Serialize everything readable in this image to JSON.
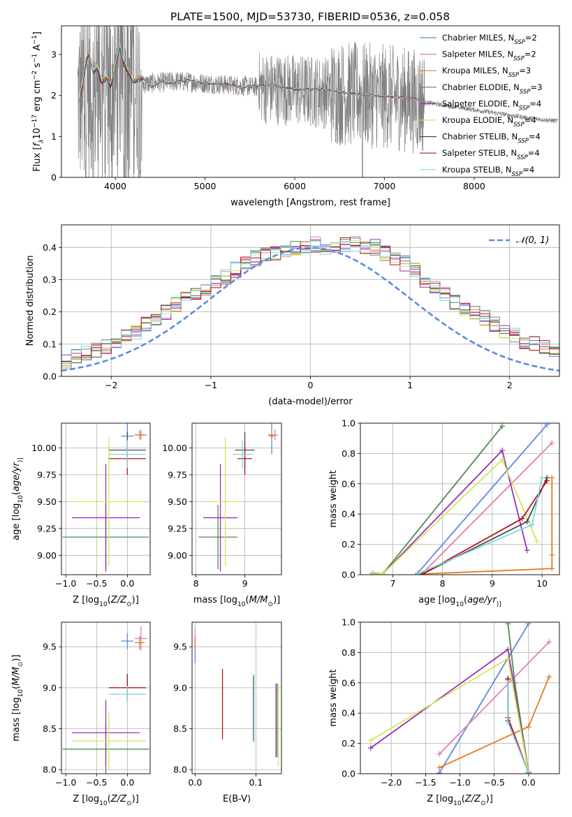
{
  "title": "PLATE=1500, MJD=53730, FIBERID=0536, z=0.058",
  "colors": {
    "Chabrier MILES": "#5b8bdc",
    "Salpeter MILES": "#e07fb0",
    "Kroupa MILES": "#e87b1e",
    "Chabrier ELODIE": "#4f8a4f",
    "Salpeter ELODIE": "#9a2fb5",
    "Kroupa ELODIE": "#d2e85a",
    "Chabrier STELIB": "#4a4a4a",
    "Salpeter STELIB": "#b3141c",
    "Kroupa STELIB": "#7fd6df",
    "data": "#808080",
    "normal": "#5b8bdc"
  },
  "chart_data": [
    {
      "id": "spectrum",
      "type": "line",
      "title": "PLATE=1500, MJD=53730, FIBERID=0536, z=0.058",
      "xlabel": "wavelength [Angstrom, rest frame]",
      "ylabel_parts": [
        "Flux [",
        "f",
        "λ",
        "10",
        "−17",
        " erg cm",
        "−2",
        " s",
        "−1",
        " A",
        "−1",
        "]"
      ],
      "xlim": [
        3400,
        8950
      ],
      "ylim": [
        0,
        3.7
      ],
      "xticks": [
        4000,
        5000,
        6000,
        7000,
        8000
      ],
      "yticks": [
        0,
        1,
        2,
        3
      ],
      "legend": [
        {
          "model": "Chabrier MILES",
          "nssp": "2"
        },
        {
          "model": "Salpeter MILES",
          "nssp": "2"
        },
        {
          "model": "Kroupa MILES",
          "nssp": "3"
        },
        {
          "model": "Chabrier ELODIE",
          "nssp": "3"
        },
        {
          "model": "Salpeter ELODIE",
          "nssp": "4"
        },
        {
          "model": "Kroupa ELODIE",
          "nssp": "4"
        },
        {
          "model": "Chabrier STELIB",
          "nssp": "4"
        },
        {
          "model": "Salpeter STELIB",
          "nssp": "4"
        },
        {
          "model": "Kroupa STELIB",
          "nssp": "4"
        }
      ],
      "legend_label_template": [
        "",
        ", N",
        "SSP",
        "=",
        ""
      ],
      "data_continuum": [
        [
          3600,
          1.9
        ],
        [
          3700,
          2.05
        ],
        [
          3800,
          2.0
        ],
        [
          3950,
          2.2
        ],
        [
          4050,
          2.3
        ],
        [
          4200,
          2.25
        ],
        [
          4400,
          2.3
        ],
        [
          4700,
          2.35
        ],
        [
          5000,
          2.3
        ],
        [
          5300,
          2.25
        ],
        [
          5600,
          2.2
        ],
        [
          5900,
          2.15
        ],
        [
          6200,
          2.1
        ],
        [
          6500,
          2.05
        ],
        [
          6800,
          2.0
        ],
        [
          7100,
          1.95
        ],
        [
          7400,
          1.85
        ],
        [
          7700,
          1.75
        ],
        [
          8000,
          1.65
        ],
        [
          8300,
          1.55
        ],
        [
          8600,
          1.45
        ],
        [
          8900,
          1.38
        ]
      ],
      "models_continuum": [
        [
          3600,
          1.9
        ],
        [
          3650,
          2.5
        ],
        [
          3700,
          3.1
        ],
        [
          3750,
          2.6
        ],
        [
          3800,
          2.7
        ],
        [
          3850,
          2.3
        ],
        [
          3900,
          2.45
        ],
        [
          3950,
          2.25
        ],
        [
          4000,
          2.7
        ],
        [
          4050,
          3.2
        ],
        [
          4100,
          2.75
        ],
        [
          4150,
          2.55
        ],
        [
          4200,
          2.35
        ],
        [
          4300,
          2.45
        ],
        [
          4400,
          2.2
        ],
        [
          4500,
          2.35
        ],
        [
          4600,
          2.3
        ],
        [
          4800,
          2.38
        ],
        [
          5000,
          2.3
        ],
        [
          5200,
          2.28
        ],
        [
          5400,
          2.2
        ],
        [
          5700,
          2.25
        ],
        [
          6000,
          2.15
        ],
        [
          6300,
          2.15
        ],
        [
          6600,
          2.05
        ],
        [
          6900,
          2.0
        ],
        [
          7200,
          1.95
        ],
        [
          7400,
          1.9
        ]
      ]
    },
    {
      "id": "residuals",
      "type": "line",
      "xlabel": "(data-model)/error",
      "ylabel": "Normed distribution",
      "xlim": [
        -2.5,
        2.5
      ],
      "ylim": [
        0,
        0.47
      ],
      "xticks": [
        -2,
        -1,
        0,
        1,
        2
      ],
      "yticks": [
        0.0,
        0.1,
        0.2,
        0.3,
        0.4
      ],
      "legend": "𝒩(0, 1)",
      "bin_width": 0.1,
      "hist_base": [
        0.028,
        0.03,
        0.032,
        0.035,
        0.04,
        0.048,
        0.06,
        0.07,
        0.08,
        0.095,
        0.11,
        0.125,
        0.14,
        0.16,
        0.18,
        0.2,
        0.225,
        0.24,
        0.255,
        0.275,
        0.29,
        0.31,
        0.33,
        0.35,
        0.365,
        0.38,
        0.385,
        0.395,
        0.4,
        0.405,
        0.41,
        0.4,
        0.405,
        0.41,
        0.412,
        0.405,
        0.4,
        0.38,
        0.36,
        0.35,
        0.33,
        0.3,
        0.28,
        0.26,
        0.23,
        0.21,
        0.2,
        0.18,
        0.16,
        0.14,
        0.125,
        0.11,
        0.1,
        0.09,
        0.08,
        0.07,
        0.06,
        0.05,
        0.045,
        0.04
      ]
    },
    {
      "id": "age-vs-z",
      "type": "scatter",
      "xlabel_parts": [
        "Z [log",
        "10",
        "(",
        "Z/Z",
        "⊙",
        ")]"
      ],
      "ylabel_parts": [
        "age  [log",
        "10",
        "(",
        "age/yr",
        ")]"
      ],
      "xlim": [
        -1.07,
        0.37
      ],
      "ylim": [
        8.82,
        10.23
      ],
      "xticks": [
        -1.0,
        -0.5,
        0.0
      ],
      "yticks": [
        9.0,
        9.25,
        9.5,
        9.75,
        10.0
      ],
      "points": [
        {
          "model": "Chabrier MILES",
          "x": 0.0,
          "xerr": 0.1,
          "y": 10.11,
          "yerr": 0.17
        },
        {
          "model": "Salpeter MILES",
          "x": 0.22,
          "xerr": 0.1,
          "y": 10.12,
          "yerr": 0.05
        },
        {
          "model": "Kroupa MILES",
          "x": 0.2,
          "xerr": 0.08,
          "y": 10.12,
          "yerr": 0.04
        },
        {
          "model": "Chabrier ELODIE",
          "x": -0.35,
          "xerr": 0.7,
          "y": 9.17,
          "yerr": 0.3
        },
        {
          "model": "Salpeter ELODIE",
          "x": -0.35,
          "xerr": 0.55,
          "y": 9.35,
          "yerr": 0.5
        },
        {
          "model": "Kroupa ELODIE",
          "x": -0.3,
          "xerr": 0.6,
          "y": 9.5,
          "yerr": 0.6
        },
        {
          "model": "Chabrier STELIB",
          "x": 0.0,
          "xerr": 0.3,
          "y": 9.98,
          "yerr": 0.17
        },
        {
          "model": "Salpeter STELIB",
          "x": 0.0,
          "xerr": 0.3,
          "y": 9.9,
          "yerr": 0.15
        },
        {
          "model": "Kroupa STELIB",
          "x": 0.0,
          "xerr": 0.3,
          "y": 9.94,
          "yerr": 0.13
        }
      ]
    },
    {
      "id": "age-vs-mass",
      "type": "scatter",
      "xlabel_parts": [
        "mass [log",
        "10",
        "(",
        "M/M",
        "⊙",
        ")]"
      ],
      "xlim": [
        7.92,
        9.75
      ],
      "ylim": [
        8.82,
        10.23
      ],
      "xticks": [
        8,
        9
      ],
      "yticks": [
        9.0,
        9.25,
        9.5,
        9.75,
        10.0
      ],
      "points": [
        {
          "model": "Chabrier MILES",
          "x": 9.55,
          "xerr": 0.05,
          "y": 10.11,
          "yerr": 0.17
        },
        {
          "model": "Salpeter MILES",
          "x": 9.62,
          "xerr": 0.06,
          "y": 10.12,
          "yerr": 0.05
        },
        {
          "model": "Kroupa MILES",
          "x": 9.55,
          "xerr": 0.08,
          "y": 10.12,
          "yerr": 0.04
        },
        {
          "model": "Chabrier ELODIE",
          "x": 8.45,
          "xerr": 0.4,
          "y": 9.17,
          "yerr": 0.3
        },
        {
          "model": "Salpeter ELODIE",
          "x": 8.5,
          "xerr": 0.35,
          "y": 9.35,
          "yerr": 0.5
        },
        {
          "model": "Kroupa ELODIE",
          "x": 8.6,
          "xerr": 0.3,
          "y": 9.5,
          "yerr": 0.6
        },
        {
          "model": "Chabrier STELIB",
          "x": 9.0,
          "xerr": 0.2,
          "y": 9.98,
          "yerr": 0.17
        },
        {
          "model": "Salpeter STELIB",
          "x": 9.0,
          "xerr": 0.15,
          "y": 9.9,
          "yerr": 0.15
        },
        {
          "model": "Kroupa STELIB",
          "x": 8.95,
          "xerr": 0.2,
          "y": 9.94,
          "yerr": 0.13
        }
      ]
    },
    {
      "id": "weight-vs-age",
      "type": "line",
      "xlabel_parts": [
        "age  [log",
        "10",
        "(",
        "age/yr",
        ")]"
      ],
      "ylabel": "mass weight",
      "xlim": [
        6.35,
        10.35
      ],
      "ylim": [
        0,
        1.0
      ],
      "xticks": [
        7,
        8,
        9,
        10
      ],
      "yticks": [
        0.0,
        0.2,
        0.4,
        0.6,
        0.8,
        1.0
      ],
      "series": [
        {
          "model": "Chabrier MILES",
          "points": [
            [
              7.5,
              0.01
            ],
            [
              10.1,
              0.99
            ]
          ]
        },
        {
          "model": "Salpeter MILES",
          "points": [
            [
              7.6,
              0.01
            ],
            [
              10.2,
              0.87
            ]
          ]
        },
        {
          "model": "Kroupa MILES",
          "points": [
            [
              7.6,
              0.005
            ],
            [
              10.2,
              0.04
            ],
            [
              10.2,
              0.13
            ],
            [
              10.2,
              0.64
            ]
          ]
        },
        {
          "model": "Chabrier ELODIE",
          "points": [
            [
              6.6,
              0.01
            ],
            [
              6.8,
              0.005
            ],
            [
              9.2,
              0.98
            ]
          ]
        },
        {
          "model": "Salpeter ELODIE",
          "points": [
            [
              6.6,
              0.005
            ],
            [
              6.8,
              0.005
            ],
            [
              9.2,
              0.82
            ],
            [
              9.7,
              0.16
            ]
          ]
        },
        {
          "model": "Kroupa ELODIE",
          "points": [
            [
              6.6,
              0.005
            ],
            [
              6.8,
              0.005
            ],
            [
              9.2,
              0.76
            ],
            [
              9.9,
              0.22
            ]
          ]
        },
        {
          "model": "Chabrier STELIB",
          "points": [
            [
              7.6,
              0.005
            ],
            [
              9.7,
              0.35
            ],
            [
              10.1,
              0.64
            ]
          ]
        },
        {
          "model": "Salpeter STELIB",
          "points": [
            [
              7.6,
              0.005
            ],
            [
              9.6,
              0.37
            ],
            [
              10.1,
              0.62
            ]
          ]
        },
        {
          "model": "Kroupa STELIB",
          "points": [
            [
              7.5,
              0.005
            ],
            [
              9.8,
              0.33
            ],
            [
              10.0,
              0.64
            ]
          ]
        }
      ]
    },
    {
      "id": "mass-vs-z",
      "type": "scatter",
      "xlabel_parts": [
        "Z [log",
        "10",
        "(",
        "Z/Z",
        "⊙",
        ")]"
      ],
      "ylabel_parts": [
        "mass [log",
        "10",
        "(",
        "M/M",
        "⊙",
        ")]"
      ],
      "xlim": [
        -1.07,
        0.37
      ],
      "ylim": [
        7.95,
        9.8
      ],
      "xticks": [
        -1.0,
        -0.5,
        0.0
      ],
      "yticks": [
        8.0,
        8.5,
        9.0,
        9.5
      ],
      "points": [
        {
          "model": "Chabrier MILES",
          "x": 0.0,
          "xerr": 0.1,
          "y": 9.57,
          "yerr": 0.1
        },
        {
          "model": "Salpeter MILES",
          "x": 0.22,
          "xerr": 0.1,
          "y": 9.6,
          "yerr": 0.15
        },
        {
          "model": "Kroupa MILES",
          "x": 0.2,
          "xerr": 0.08,
          "y": 9.55,
          "yerr": 0.08
        },
        {
          "model": "Chabrier ELODIE",
          "x": -0.35,
          "xerr": 0.7,
          "y": 8.25,
          "yerr": 0.3
        },
        {
          "model": "Salpeter ELODIE",
          "x": -0.35,
          "xerr": 0.55,
          "y": 8.45,
          "yerr": 0.4
        },
        {
          "model": "Kroupa ELODIE",
          "x": -0.3,
          "xerr": 0.6,
          "y": 8.35,
          "yerr": 0.35
        },
        {
          "model": "Chabrier STELIB",
          "x": 0.0,
          "xerr": 0.3,
          "y": 9.0,
          "yerr": 0.17
        },
        {
          "model": "Salpeter STELIB",
          "x": 0.0,
          "xerr": 0.3,
          "y": 9.0,
          "yerr": 0.15
        },
        {
          "model": "Kroupa STELIB",
          "x": 0.0,
          "xerr": 0.3,
          "y": 8.92,
          "yerr": 0.1
        }
      ]
    },
    {
      "id": "mass-vs-ebv",
      "type": "scatter",
      "xlabel": "E(B-V)",
      "xlim": [
        -0.005,
        0.142
      ],
      "ylim": [
        7.95,
        9.8
      ],
      "xticks": [
        0.0,
        0.1
      ],
      "yticks": [
        8.0,
        8.5,
        9.0,
        9.5
      ],
      "points": [
        {
          "model": "Chabrier MILES",
          "x": 0.0,
          "y": 9.45,
          "yerr": 0.15
        },
        {
          "model": "Salpeter MILES",
          "x": 0.0,
          "y": 9.62,
          "yerr": 0.1
        },
        {
          "model": "Kroupa MILES",
          "x": 0.0,
          "y": 9.55,
          "yerr": 0.08
        },
        {
          "model": "Chabrier ELODIE",
          "x": 0.135,
          "y": 8.6,
          "yerr": 0.45
        },
        {
          "model": "Salpeter ELODIE",
          "x": 0.133,
          "y": 8.6,
          "yerr": 0.45
        },
        {
          "model": "Kroupa ELODIE",
          "x": 0.137,
          "y": 8.55,
          "yerr": 0.5
        },
        {
          "model": "Chabrier STELIB",
          "x": 0.096,
          "y": 8.75,
          "yerr": 0.4
        },
        {
          "model": "Salpeter STELIB",
          "x": 0.045,
          "y": 8.8,
          "yerr": 0.43
        },
        {
          "model": "Kroupa STELIB",
          "x": 0.097,
          "y": 8.75,
          "yerr": 0.42
        }
      ]
    },
    {
      "id": "weight-vs-z",
      "type": "line",
      "xlabel_parts": [
        "Z [log",
        "10",
        "(",
        "Z/Z",
        "⊙",
        ")]"
      ],
      "ylabel": "mass weight",
      "xlim": [
        -2.45,
        0.45
      ],
      "ylim": [
        0,
        1.0
      ],
      "xticks": [
        -2.0,
        -1.5,
        -1.0,
        -0.5,
        0.0
      ],
      "yticks": [
        0.0,
        0.2,
        0.4,
        0.6,
        0.8,
        1.0
      ],
      "series": [
        {
          "model": "Chabrier MILES",
          "points": [
            [
              -1.3,
              0.005
            ],
            [
              0.0,
              0.99
            ]
          ]
        },
        {
          "model": "Salpeter MILES",
          "points": [
            [
              -1.3,
              0.13
            ],
            [
              0.3,
              0.87
            ]
          ]
        },
        {
          "model": "Kroupa MILES",
          "points": [
            [
              -1.3,
              0.04
            ],
            [
              0.0,
              0.31
            ],
            [
              0.3,
              0.64
            ]
          ]
        },
        {
          "model": "Chabrier ELODIE",
          "points": [
            [
              -0.3,
              0.99
            ],
            [
              -0.2,
              0.6
            ],
            [
              0.0,
              0.01
            ]
          ]
        },
        {
          "model": "Salpeter ELODIE",
          "points": [
            [
              -2.3,
              0.17
            ],
            [
              -0.3,
              0.82
            ],
            [
              0.0,
              0.005
            ]
          ]
        },
        {
          "model": "Kroupa ELODIE",
          "points": [
            [
              -2.3,
              0.22
            ],
            [
              -0.3,
              0.76
            ],
            [
              0.0,
              0.005
            ]
          ]
        },
        {
          "model": "Chabrier STELIB",
          "points": [
            [
              -0.3,
              0.63
            ],
            [
              -0.3,
              0.35
            ],
            [
              0.0,
              0.005
            ]
          ]
        },
        {
          "model": "Salpeter STELIB",
          "points": [
            [
              -0.3,
              0.62
            ],
            [
              -0.3,
              0.37
            ],
            [
              0.0,
              0.005
            ]
          ]
        },
        {
          "model": "Kroupa STELIB",
          "points": [
            [
              -0.3,
              0.6
            ],
            [
              -0.3,
              0.34
            ],
            [
              0.0,
              0.005
            ]
          ]
        }
      ]
    }
  ]
}
